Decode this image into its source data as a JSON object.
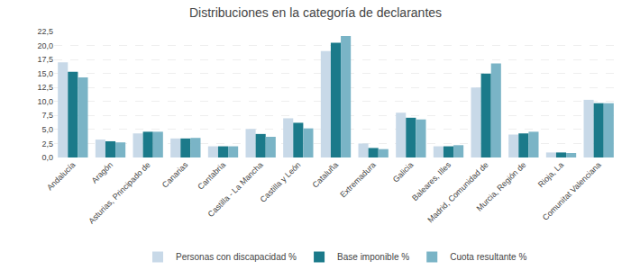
{
  "chart_data": {
    "type": "bar",
    "title": "Distribuciones en la categoría de declarantes",
    "categories": [
      "Andalucía",
      "Aragón",
      "Asturias, Principado de",
      "Canarias",
      "Cantabria",
      "Castilla - La Mancha",
      "Castilla y León",
      "Cataluña",
      "Extremadura",
      "Galicia",
      "Baleares, Illes",
      "Madrid, Comunidad de",
      "Murcia, Región de",
      "Rioja, La",
      "Comunitat Valenciana"
    ],
    "series": [
      {
        "name": "Personas con discapacidad %",
        "color": "#c8d9e8",
        "values": [
          17.0,
          3.2,
          4.3,
          3.4,
          2.0,
          5.1,
          7.0,
          19.0,
          2.5,
          8.0,
          2.0,
          12.5,
          4.1,
          0.9,
          10.3
        ]
      },
      {
        "name": "Base imponible %",
        "color": "#1b7a8a",
        "values": [
          15.3,
          2.9,
          4.6,
          3.4,
          2.0,
          4.2,
          6.2,
          20.5,
          1.7,
          7.1,
          2.0,
          15.0,
          4.3,
          0.9,
          9.7
        ]
      },
      {
        "name": "Cuota resultante %",
        "color": "#7ab4c6",
        "values": [
          14.3,
          2.7,
          4.6,
          3.5,
          2.0,
          3.7,
          5.2,
          21.7,
          1.5,
          6.8,
          2.2,
          16.8,
          4.6,
          0.8,
          9.7
        ]
      }
    ],
    "ylim": [
      0,
      22.5
    ],
    "yticks": [
      {
        "value": 0.0,
        "label": "0,0"
      },
      {
        "value": 2.5,
        "label": "2,5"
      },
      {
        "value": 5.0,
        "label": "5,0"
      },
      {
        "value": 7.5,
        "label": "7,5"
      },
      {
        "value": 10.0,
        "label": "10,0"
      },
      {
        "value": 12.5,
        "label": "12,5"
      },
      {
        "value": 15.0,
        "label": "15,0"
      },
      {
        "value": 17.5,
        "label": "17,5"
      },
      {
        "value": 20.0,
        "label": "20,0"
      },
      {
        "value": 22.5,
        "label": "22,5"
      }
    ],
    "grid": true,
    "legend": "bottom"
  }
}
